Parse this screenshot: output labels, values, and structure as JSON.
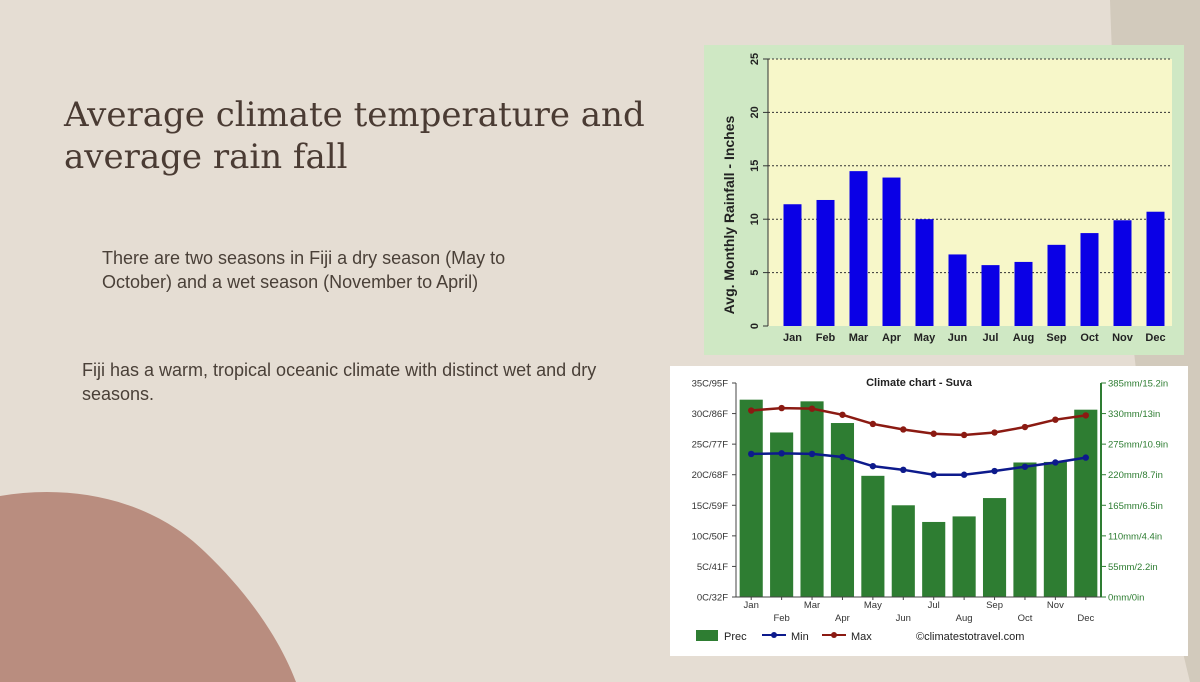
{
  "slide": {
    "title": "Average climate temperature and average rain fall",
    "paragraph_1": "There are two seasons in Fiji a dry season (May to October) and a wet season (November to April)",
    "paragraph_2": "Fiji has a warm, tropical oceanic climate with distinct wet and dry seasons."
  },
  "colors": {
    "background": "#e5ddd3",
    "title_text": "#4a3b33",
    "accent_blob": "#b98d7f",
    "rainfall_bar": "#0a00e6",
    "rainfall_plot_bg": "#f7f7c9",
    "rainfall_chart_bg": "#cfe8c4",
    "suva_prec": "#2e7d32",
    "suva_min": "#0d1a8c",
    "suva_max": "#8b1a12"
  },
  "chart_data": [
    {
      "type": "bar",
      "title": "",
      "xlabel": "",
      "ylabel": "Avg. Monthly Rainfall - Inches",
      "categories": [
        "Jan",
        "Feb",
        "Mar",
        "Apr",
        "May",
        "Jun",
        "Jul",
        "Aug",
        "Sep",
        "Oct",
        "Nov",
        "Dec"
      ],
      "values": [
        11.4,
        11.8,
        14.5,
        13.9,
        10.0,
        6.7,
        5.7,
        6.0,
        7.6,
        8.7,
        9.9,
        10.7
      ],
      "ylim": [
        0,
        25
      ],
      "yticks": [
        0,
        5,
        10,
        15,
        20,
        25
      ],
      "grid": true
    },
    {
      "type": "bar",
      "title": "Climate chart - Suva",
      "categories": [
        "Jan",
        "Feb",
        "Mar",
        "Apr",
        "May",
        "Jun",
        "Jul",
        "Aug",
        "Sep",
        "Oct",
        "Nov",
        "Dec"
      ],
      "left_ticks": [
        "0C/32F",
        "5C/41F",
        "10C/50F",
        "15C/59F",
        "20C/68F",
        "25C/77F",
        "30C/86F",
        "35C/95F"
      ],
      "right_ticks": [
        "0mm/0in",
        "55mm/2.2in",
        "110mm/4.4in",
        "165mm/6.5in",
        "220mm/8.7in",
        "275mm/10.9in",
        "330mm/13in",
        "385mm/15.2in"
      ],
      "temp_ylim": [
        0,
        35
      ],
      "prec_ylim": [
        0,
        385
      ],
      "series": [
        {
          "name": "Prec",
          "type": "bar",
          "axis": "right",
          "values": [
            355,
            296,
            352,
            313,
            218,
            165,
            135,
            145,
            178,
            242,
            243,
            337
          ]
        },
        {
          "name": "Min",
          "type": "line",
          "axis": "left",
          "values": [
            23.4,
            23.5,
            23.4,
            22.9,
            21.4,
            20.8,
            20.0,
            20.0,
            20.6,
            21.3,
            22.0,
            22.8
          ]
        },
        {
          "name": "Max",
          "type": "line",
          "axis": "left",
          "values": [
            30.5,
            30.9,
            30.8,
            29.8,
            28.3,
            27.4,
            26.7,
            26.5,
            26.9,
            27.8,
            29.0,
            29.7
          ]
        }
      ],
      "legend": [
        "Prec",
        "Min",
        "Max"
      ],
      "legend_position": "bottom",
      "credit": "©climatestotravel.com"
    }
  ]
}
